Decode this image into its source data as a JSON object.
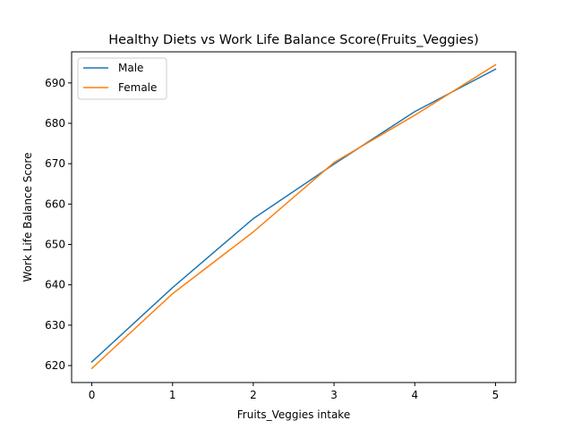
{
  "chart_data": {
    "type": "line",
    "title": "Healthy Diets vs Work Life Balance Score(Fruits_Veggies)",
    "xlabel": "Fruits_Veggies intake",
    "ylabel": "Work Life Balance Score",
    "x": [
      0,
      1,
      2,
      3,
      4,
      5
    ],
    "xlim": [
      -0.25,
      5.25
    ],
    "ylim": [
      615.8,
      697.7
    ],
    "xticks": [
      0,
      1,
      2,
      3,
      4,
      5
    ],
    "yticks": [
      620,
      630,
      640,
      650,
      660,
      670,
      680,
      690
    ],
    "grid": false,
    "legend_position": "top-left",
    "series": [
      {
        "name": "Male",
        "color": "#1f77b4",
        "values": [
          620.9,
          639.3,
          656.4,
          669.9,
          682.9,
          693.4
        ]
      },
      {
        "name": "Female",
        "color": "#ff7f0e",
        "values": [
          619.3,
          637.8,
          653.1,
          670.3,
          682.0,
          694.5
        ]
      }
    ]
  }
}
